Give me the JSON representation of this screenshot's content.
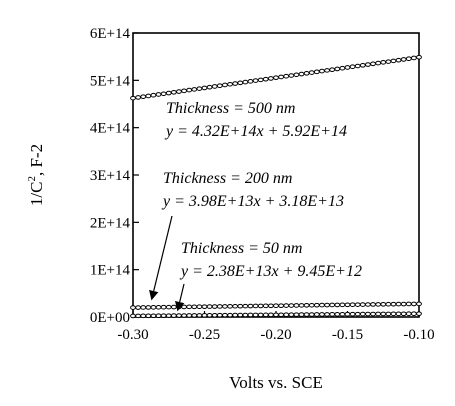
{
  "chart_data": {
    "type": "scatter",
    "xlabel": "Volts vs. SCE",
    "ylabel_main": "1/C",
    "ylabel_sup": "2",
    "ylabel_unit": ", F-2",
    "xlim": [
      -0.3,
      -0.1
    ],
    "ylim": [
      0,
      600000000000000.0
    ],
    "x_ticks": [
      -0.3,
      -0.25,
      -0.2,
      -0.15,
      -0.1
    ],
    "x_tick_labels": [
      "-0.30",
      "-0.25",
      "-0.20",
      "-0.15",
      "-0.10"
    ],
    "y_ticks": [
      0,
      100000000000000.0,
      200000000000000.0,
      300000000000000.0,
      400000000000000.0,
      500000000000000.0,
      600000000000000.0
    ],
    "y_tick_labels": [
      "0E+00",
      "1E+14",
      "2E+14",
      "3E+14",
      "4E+14",
      "5E+14",
      "6E+14"
    ],
    "grid": false,
    "series": [
      {
        "name": "Thickness = 500 nm",
        "slope": 432000000000000.0,
        "intercept": 592000000000000.0,
        "marker": "open-circle"
      },
      {
        "name": "Thickness = 200 nm",
        "slope": 39800000000000.0,
        "intercept": 31800000000000.0,
        "marker": "open-circle"
      },
      {
        "name": "Thickness = 50 nm",
        "slope": 23800000000000.0,
        "intercept": 9450000000000.0,
        "marker": "open-circle"
      }
    ],
    "annotations": [
      {
        "thickness": "Thickness = 500 nm",
        "equation": "y = 4.32E+14x + 5.92E+14"
      },
      {
        "thickness": "Thickness = 200 nm",
        "equation": "y = 3.98E+13x + 3.18E+13"
      },
      {
        "thickness": "Thickness = 50 nm",
        "equation": "y = 2.38E+13x + 9.45E+12"
      }
    ]
  }
}
